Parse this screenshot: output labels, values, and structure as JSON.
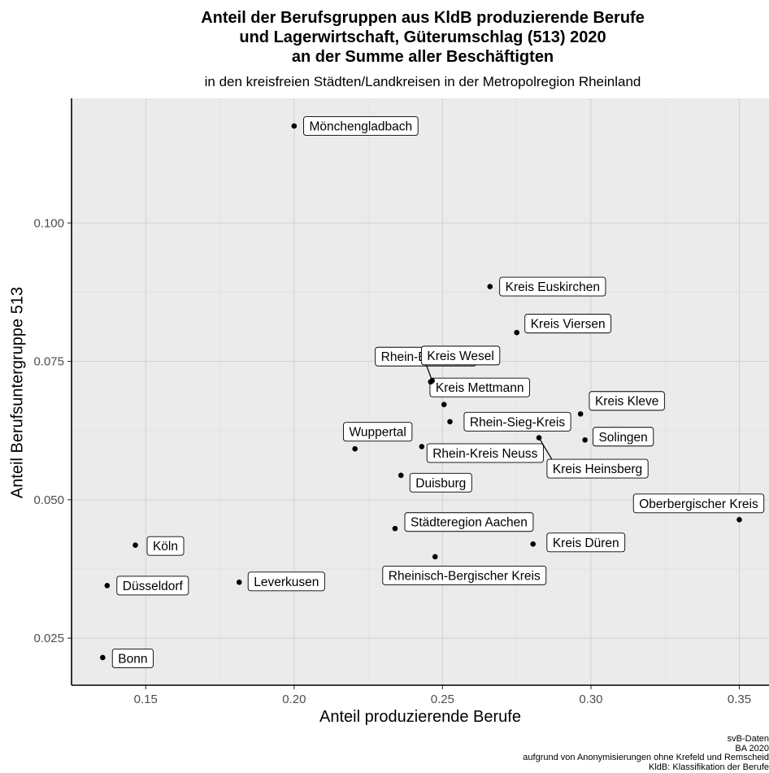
{
  "chart_data": {
    "type": "scatter",
    "title": [
      "Anteil der Berufsgruppen aus KldB produzierende Berufe",
      "und Lagerwirtschaft, Güterumschlag (513) 2020",
      "an der Summe aller Beschäftigten"
    ],
    "subtitle": "in den kreisfreien Städten/Landkreisen in der Metropolregion Rheinland",
    "xlabel": "Anteil produzierende Berufe",
    "ylabel": "Anteil Berufsuntergruppe 513",
    "xlim": [
      0.125,
      0.36
    ],
    "ylim": [
      0.0165,
      0.1225
    ],
    "xticks": [
      {
        "v": 0.15,
        "label": "0.15"
      },
      {
        "v": 0.2,
        "label": "0.20"
      },
      {
        "v": 0.25,
        "label": "0.25"
      },
      {
        "v": 0.3,
        "label": "0.30"
      },
      {
        "v": 0.35,
        "label": "0.35"
      }
    ],
    "yticks": [
      {
        "v": 0.025,
        "label": "0.025"
      },
      {
        "v": 0.05,
        "label": "0.050"
      },
      {
        "v": 0.075,
        "label": "0.075"
      },
      {
        "v": 0.1,
        "label": "0.100"
      }
    ],
    "grid": true,
    "caption": [
      "svB-Daten",
      "BA 2020",
      "aufgrund von Anonymisierungen ohne Krefeld und Remscheid",
      "KldB: Klassifikation der Berufe"
    ],
    "points": [
      {
        "name": "Mönchengladbach",
        "x": 0.2,
        "y": 0.1175
      },
      {
        "name": "Kreis Euskirchen",
        "x": 0.266,
        "y": 0.0885
      },
      {
        "name": "Kreis Viersen",
        "x": 0.275,
        "y": 0.0802
      },
      {
        "name": "Rhein-Erft-Kreis",
        "x": 0.246,
        "y": 0.0713
      },
      {
        "name": "Kreis Wesel",
        "x": 0.2465,
        "y": 0.0715
      },
      {
        "name": "Kreis Mettmann",
        "x": 0.2505,
        "y": 0.0672
      },
      {
        "name": "Kreis Kleve",
        "x": 0.2965,
        "y": 0.0655
      },
      {
        "name": "Rhein-Sieg-Kreis",
        "x": 0.2525,
        "y": 0.0641
      },
      {
        "name": "Solingen",
        "x": 0.298,
        "y": 0.0608
      },
      {
        "name": "Kreis Heinsberg",
        "x": 0.2825,
        "y": 0.0612
      },
      {
        "name": "Wuppertal",
        "x": 0.2205,
        "y": 0.0592
      },
      {
        "name": "Rhein-Kreis Neuss",
        "x": 0.243,
        "y": 0.0596
      },
      {
        "name": "Duisburg",
        "x": 0.236,
        "y": 0.0544
      },
      {
        "name": "Oberbergischer Kreis",
        "x": 0.35,
        "y": 0.0464
      },
      {
        "name": "Städteregion Aachen",
        "x": 0.234,
        "y": 0.0448
      },
      {
        "name": "Kreis Düren",
        "x": 0.2805,
        "y": 0.042
      },
      {
        "name": "Rheinisch-Bergischer Kreis",
        "x": 0.2475,
        "y": 0.0397
      },
      {
        "name": "Köln",
        "x": 0.1465,
        "y": 0.0418
      },
      {
        "name": "Leverkusen",
        "x": 0.1815,
        "y": 0.0351
      },
      {
        "name": "Düsseldorf",
        "x": 0.137,
        "y": 0.0345
      },
      {
        "name": "Bonn",
        "x": 0.1355,
        "y": 0.0215
      }
    ]
  }
}
